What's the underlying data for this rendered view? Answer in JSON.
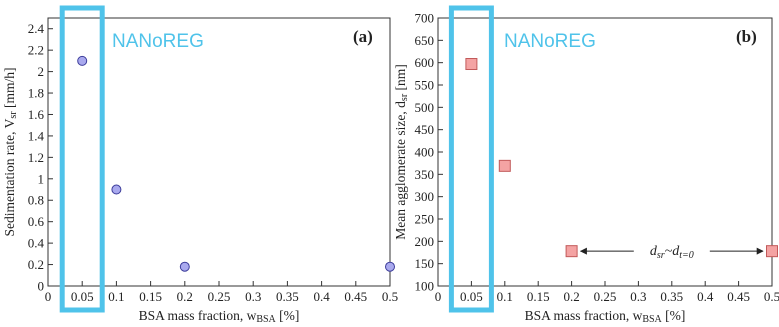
{
  "overlay_label": "NANoREG",
  "chart_data": [
    {
      "type": "scatter",
      "panel": "(a)",
      "xlabel": "BSA mass fraction, w",
      "xlabel_sub": "BSA",
      "xlabel_unit": " [%]",
      "ylabel": "Sedimentation rate, V",
      "ylabel_sub": "sr",
      "ylabel_unit": " [mm/h]",
      "xlim": [
        0,
        0.5
      ],
      "ylim": [
        0,
        2.5
      ],
      "xticks": [
        "0",
        "0.05",
        "0.1",
        "0.15",
        "0.2",
        "0.25",
        "0.3",
        "0.35",
        "0.4",
        "0.45",
        "0.5"
      ],
      "xtick_values": [
        0,
        0.05,
        0.1,
        0.15,
        0.2,
        0.25,
        0.3,
        0.35,
        0.4,
        0.45,
        0.5
      ],
      "yticks": [
        "0",
        "0.2",
        "0.4",
        "0.6",
        "0.8",
        "1",
        "1.2",
        "1.4",
        "1.6",
        "1.8",
        "2",
        "2.2",
        "2.4"
      ],
      "ytick_values": [
        0,
        0.2,
        0.4,
        0.6,
        0.8,
        1,
        1.2,
        1.4,
        1.6,
        1.8,
        2,
        2.2,
        2.4
      ],
      "marker": "circle",
      "marker_fill": "#a9a9ee",
      "marker_stroke": "#3c3c9a",
      "points": [
        {
          "x": 0.05,
          "y": 2.1
        },
        {
          "x": 0.1,
          "y": 0.9
        },
        {
          "x": 0.2,
          "y": 0.18
        },
        {
          "x": 0.5,
          "y": 0.18
        }
      ],
      "highlight_x": 0.05,
      "highlight_color": "#4fc3ea"
    },
    {
      "type": "scatter",
      "panel": "(b)",
      "xlabel": "BSA mass fraction, w",
      "xlabel_sub": "BSA",
      "xlabel_unit": " [%]",
      "ylabel": "Mean agglomerate size, d",
      "ylabel_sub": "sr",
      "ylabel_unit": " [nm]",
      "xlim": [
        0,
        0.5
      ],
      "ylim": [
        100,
        700
      ],
      "xticks": [
        "0",
        "0.05",
        "0.1",
        "0.15",
        "0.2",
        "0.25",
        "0.3",
        "0.35",
        "0.4",
        "0.45",
        "0.5"
      ],
      "xtick_values": [
        0,
        0.05,
        0.1,
        0.15,
        0.2,
        0.25,
        0.3,
        0.35,
        0.4,
        0.45,
        0.5
      ],
      "yticks": [
        "100",
        "150",
        "200",
        "250",
        "300",
        "350",
        "400",
        "450",
        "500",
        "550",
        "600",
        "650",
        "700"
      ],
      "ytick_values": [
        100,
        150,
        200,
        250,
        300,
        350,
        400,
        450,
        500,
        550,
        600,
        650,
        700
      ],
      "marker": "square",
      "marker_fill": "#f4a3a3",
      "marker_stroke": "#c25a5a",
      "points": [
        {
          "x": 0.05,
          "y": 597
        },
        {
          "x": 0.1,
          "y": 369
        },
        {
          "x": 0.2,
          "y": 178
        },
        {
          "x": 0.5,
          "y": 178
        }
      ],
      "annotation": {
        "text_d": "d",
        "text_sub1": "sr",
        "text_mid": "~d",
        "text_sub2": "t=0",
        "x_from": 0.2,
        "x_to": 0.5,
        "y": 178
      },
      "highlight_x": 0.05,
      "highlight_color": "#4fc3ea"
    }
  ]
}
